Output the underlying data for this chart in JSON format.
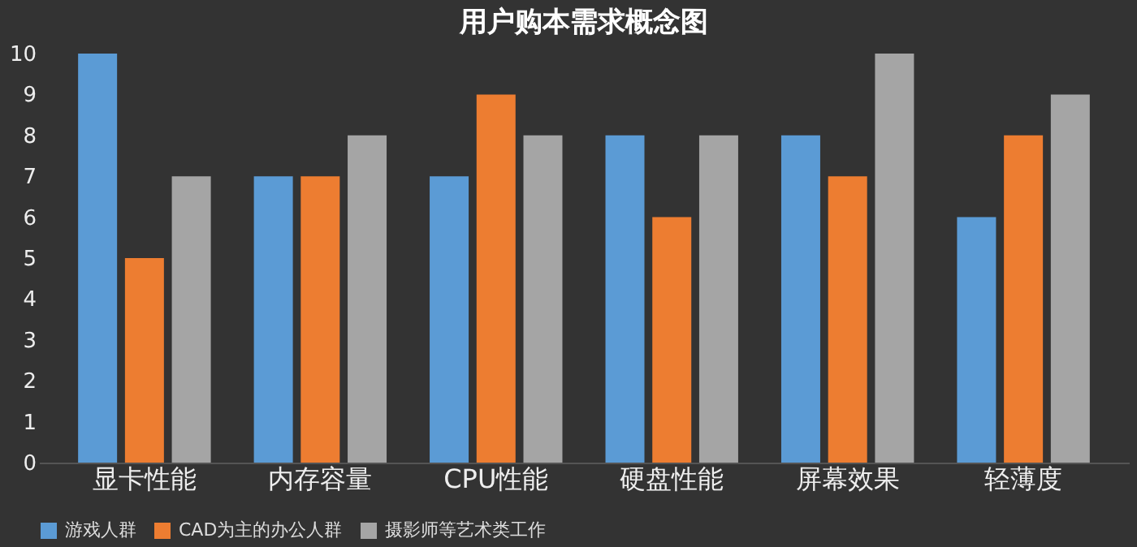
{
  "chart_data": {
    "type": "bar",
    "title": "用户购本需求概念图",
    "categories": [
      "显卡性能",
      "内存容量",
      "CPU性能",
      "硬盘性能",
      "屏幕效果",
      "轻薄度"
    ],
    "series": [
      {
        "name": "游戏人群",
        "color": "#5b9bd5",
        "values": [
          10,
          7,
          7,
          8,
          8,
          6
        ]
      },
      {
        "name": "CAD为主的办公人群",
        "color": "#ed7d31",
        "values": [
          5,
          7,
          9,
          6,
          7,
          8
        ]
      },
      {
        "name": "摄影师等艺术类工作",
        "color": "#a5a5a5",
        "values": [
          7,
          8,
          8,
          8,
          10,
          9
        ]
      }
    ],
    "ylim": [
      0,
      10
    ],
    "yticks": [
      0,
      1,
      2,
      3,
      4,
      5,
      6,
      7,
      8,
      9,
      10
    ],
    "grid": false,
    "legend": "bottom"
  }
}
